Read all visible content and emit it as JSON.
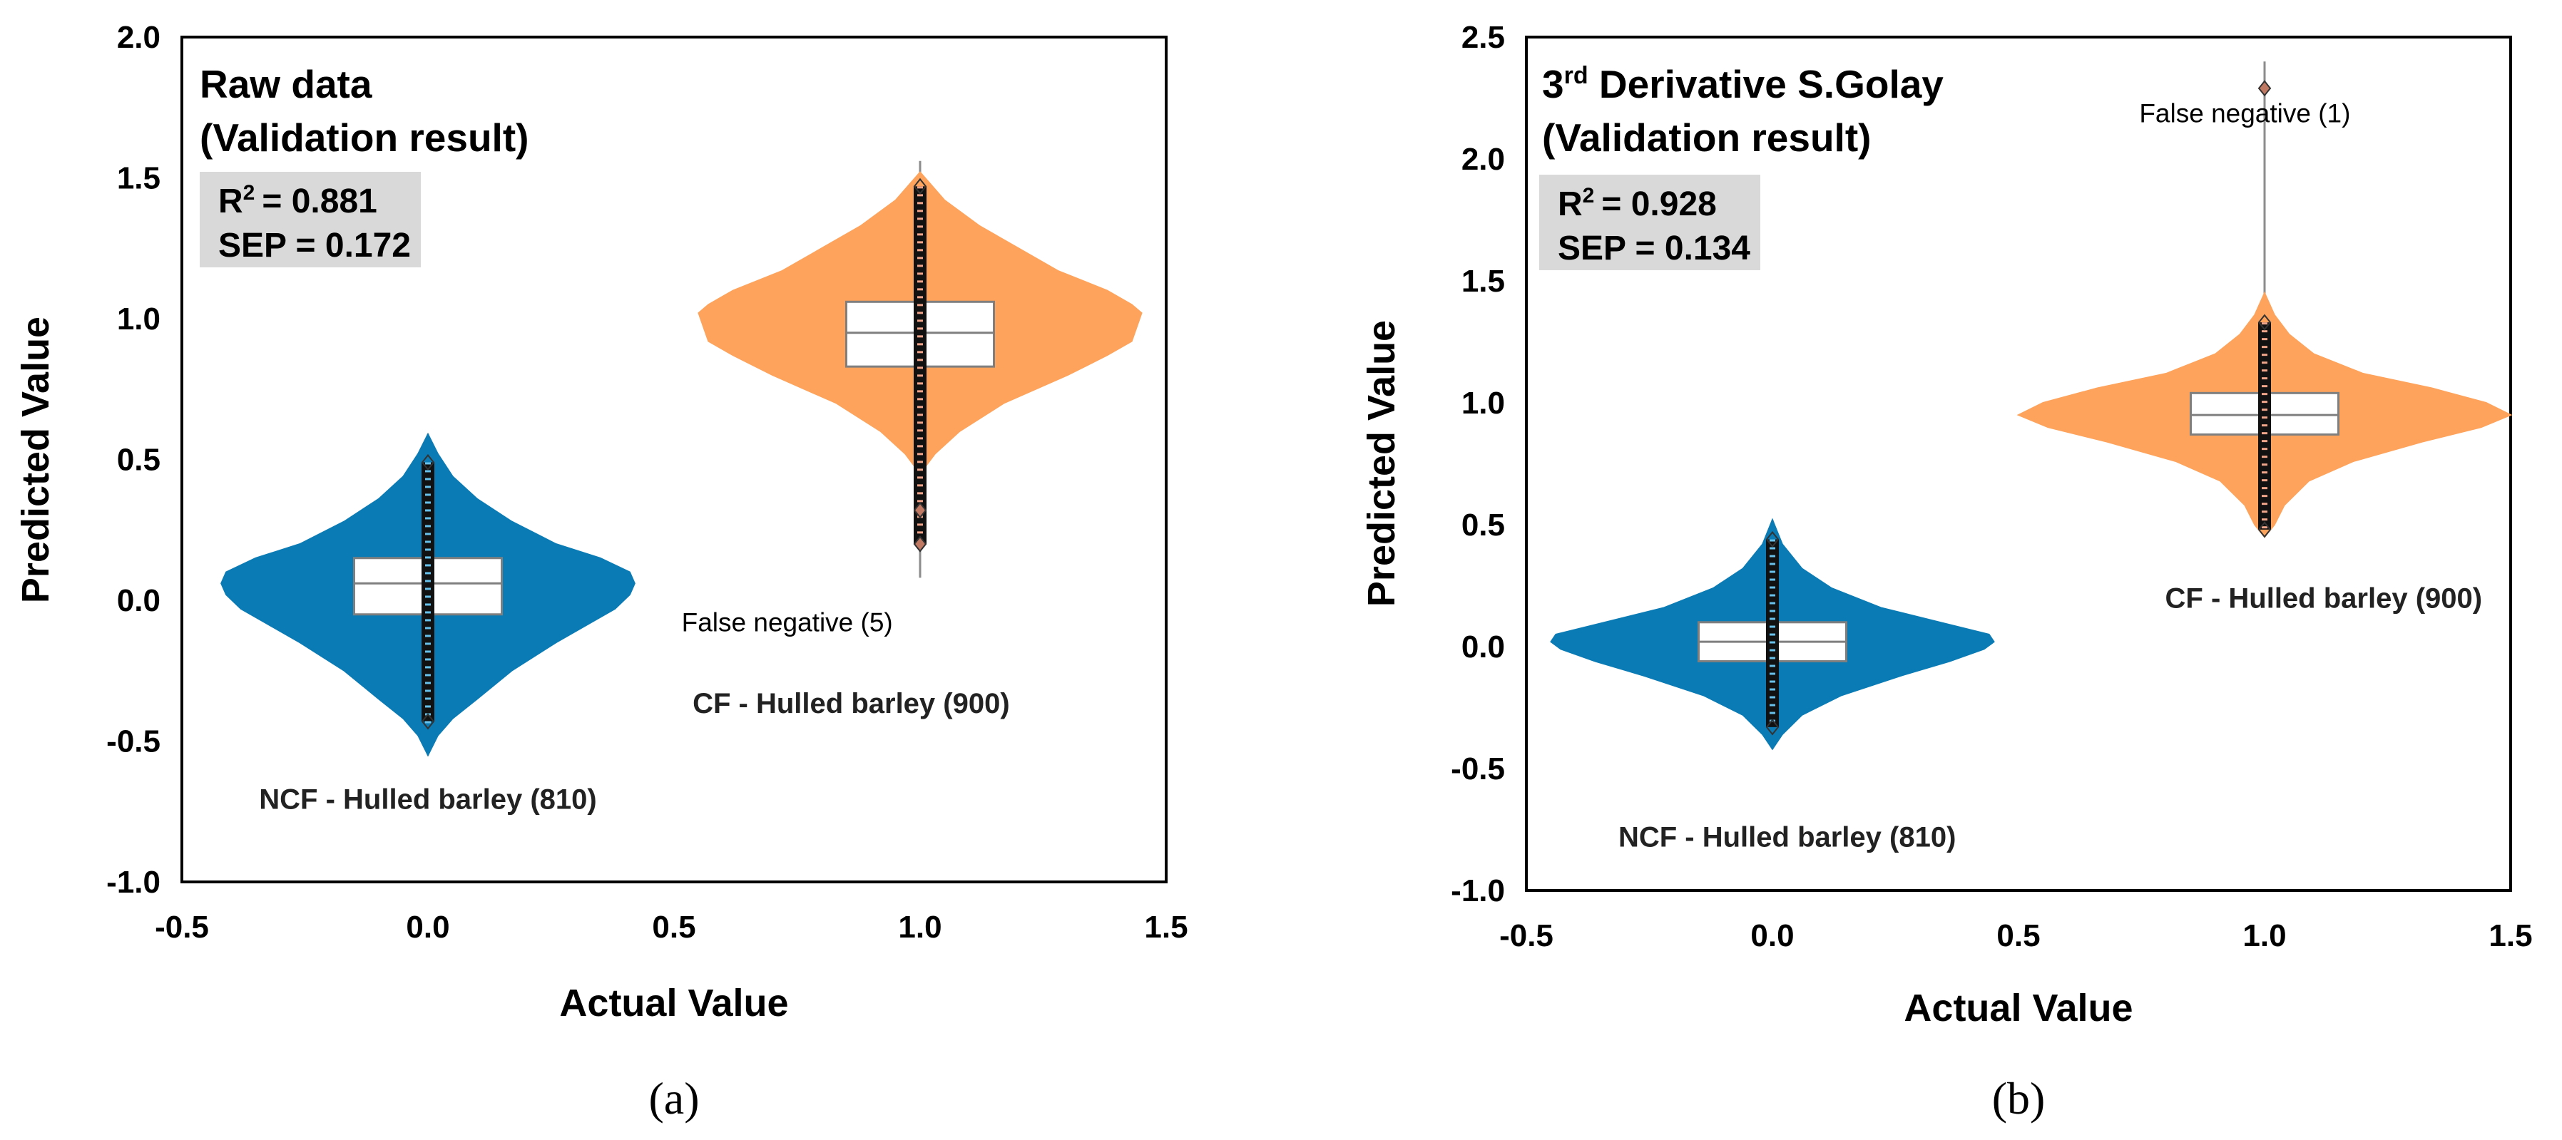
{
  "chart_data": [
    {
      "type": "violin",
      "panel_label": "(a)",
      "title_line1": "Raw data",
      "title_line2": "(Validation result)",
      "stats": {
        "r2_label": "R",
        "r2_sup": "2",
        "r2_value": "= 0.881",
        "sep": "SEP = 0.172"
      },
      "xlabel": "Actual Value",
      "ylabel": "Predicted Value",
      "xlim": [
        -0.5,
        1.5
      ],
      "ylim": [
        -1.0,
        2.0
      ],
      "xticks": [
        "-0.5",
        "0.0",
        "0.5",
        "1.0",
        "1.5"
      ],
      "xtick_values": [
        -0.5,
        0.0,
        0.5,
        1.0,
        1.5
      ],
      "yticks": [
        "-1.0",
        "-0.5",
        "0.0",
        "0.5",
        "1.0",
        "1.5",
        "2.0"
      ],
      "ytick_values": [
        -1.0,
        -0.5,
        0.0,
        0.5,
        1.0,
        1.5,
        2.0
      ],
      "groups": [
        {
          "name": "NCF - Hulled barley (810)",
          "x": 0.0,
          "color": "#0a7bb4",
          "whisker": [
            -0.55,
            0.59
          ],
          "box": {
            "q1": -0.05,
            "median": 0.06,
            "q3": 0.15,
            "half_width": 0.15
          },
          "points_range": [
            -0.43,
            0.49
          ],
          "profile": [
            [
              -0.55,
              0
            ],
            [
              -0.48,
              0.02
            ],
            [
              -0.42,
              0.05
            ],
            [
              -0.35,
              0.1
            ],
            [
              -0.25,
              0.17
            ],
            [
              -0.15,
              0.26
            ],
            [
              -0.08,
              0.33
            ],
            [
              -0.03,
              0.38
            ],
            [
              0.02,
              0.41
            ],
            [
              0.06,
              0.42
            ],
            [
              0.1,
              0.41
            ],
            [
              0.15,
              0.35
            ],
            [
              0.2,
              0.26
            ],
            [
              0.28,
              0.17
            ],
            [
              0.36,
              0.1
            ],
            [
              0.44,
              0.05
            ],
            [
              0.52,
              0.02
            ],
            [
              0.59,
              0
            ]
          ]
        },
        {
          "name": "CF - Hulled barley (900)",
          "x": 1.0,
          "color": "#fda35c",
          "whisker": [
            0.08,
            1.56
          ],
          "box": {
            "q1": 0.83,
            "median": 0.95,
            "q3": 1.06,
            "half_width": 0.15
          },
          "points_range": [
            0.2,
            1.47
          ],
          "profile": [
            [
              0.45,
              0
            ],
            [
              0.52,
              0.03
            ],
            [
              0.6,
              0.08
            ],
            [
              0.7,
              0.17
            ],
            [
              0.8,
              0.3
            ],
            [
              0.87,
              0.38
            ],
            [
              0.92,
              0.43
            ],
            [
              0.97,
              0.44
            ],
            [
              1.02,
              0.45
            ],
            [
              1.05,
              0.43
            ],
            [
              1.1,
              0.38
            ],
            [
              1.17,
              0.28
            ],
            [
              1.25,
              0.2
            ],
            [
              1.33,
              0.12
            ],
            [
              1.42,
              0.05
            ],
            [
              1.48,
              0.02
            ],
            [
              1.52,
              0
            ]
          ]
        }
      ],
      "annotations": [
        {
          "text": "False negative (5)",
          "x": 0.73,
          "y": -0.11
        },
        {
          "text": "CF - Hulled barley (900)",
          "x": 0.86,
          "y": -0.4
        },
        {
          "text": "NCF - Hulled barley (810)",
          "x": 0.0,
          "y": -0.74
        }
      ]
    },
    {
      "type": "violin",
      "panel_label": "(b)",
      "title_line1": "3",
      "title_sup": "rd",
      "title_line1_rest": " Derivative S.Golay",
      "title_line2": "(Validation result)",
      "stats": {
        "r2_label": "R",
        "r2_sup": "2",
        "r2_value": "= 0.928",
        "sep": "SEP = 0.134"
      },
      "xlabel": "Actual Value",
      "ylabel": "Predicted Value",
      "xlim": [
        -0.5,
        1.5
      ],
      "ylim": [
        -1.0,
        2.5
      ],
      "xticks": [
        "-0.5",
        "0.0",
        "0.5",
        "1.0",
        "1.5"
      ],
      "xtick_values": [
        -0.5,
        0.0,
        0.5,
        1.0,
        1.5
      ],
      "yticks": [
        "-1.0",
        "-0.5",
        "0.0",
        "0.5",
        "1.0",
        "1.5",
        "2.0",
        "2.5"
      ],
      "ytick_values": [
        -1.0,
        -0.5,
        0.0,
        0.5,
        1.0,
        1.5,
        2.0,
        2.5
      ],
      "groups": [
        {
          "name": "NCF - Hulled barley (810)",
          "x": 0.0,
          "color": "#0a7bb4",
          "whisker": [
            -0.42,
            0.52
          ],
          "box": {
            "q1": -0.06,
            "median": 0.02,
            "q3": 0.1,
            "half_width": 0.15
          },
          "points_range": [
            -0.33,
            0.44
          ],
          "profile": [
            [
              -0.42,
              0
            ],
            [
              -0.36,
              0.02
            ],
            [
              -0.28,
              0.06
            ],
            [
              -0.2,
              0.14
            ],
            [
              -0.12,
              0.26
            ],
            [
              -0.06,
              0.36
            ],
            [
              -0.01,
              0.43
            ],
            [
              0.02,
              0.45
            ],
            [
              0.05,
              0.44
            ],
            [
              0.1,
              0.34
            ],
            [
              0.16,
              0.22
            ],
            [
              0.24,
              0.12
            ],
            [
              0.32,
              0.06
            ],
            [
              0.42,
              0.02
            ],
            [
              0.52,
              0
            ]
          ]
        },
        {
          "name": "CF - Hulled barley (900)",
          "x": 1.0,
          "color": "#fda35c",
          "whisker": [
            0.45,
            2.4
          ],
          "box": {
            "q1": 0.87,
            "median": 0.95,
            "q3": 1.04,
            "half_width": 0.15
          },
          "points_range": [
            0.48,
            1.33
          ],
          "outlier": 2.29,
          "profile": [
            [
              0.45,
              0
            ],
            [
              0.5,
              0.02
            ],
            [
              0.58,
              0.04
            ],
            [
              0.68,
              0.09
            ],
            [
              0.76,
              0.18
            ],
            [
              0.84,
              0.32
            ],
            [
              0.9,
              0.44
            ],
            [
              0.95,
              0.5
            ],
            [
              1.0,
              0.45
            ],
            [
              1.06,
              0.34
            ],
            [
              1.12,
              0.2
            ],
            [
              1.2,
              0.1
            ],
            [
              1.28,
              0.05
            ],
            [
              1.36,
              0.02
            ],
            [
              1.45,
              0
            ]
          ]
        }
      ],
      "annotations": [
        {
          "text": "False negative (1)",
          "x": 0.96,
          "y": 2.15
        },
        {
          "text": "CF - Hulled barley (900)",
          "x": 1.12,
          "y": 0.16
        },
        {
          "text": "NCF - Hulled barley (810)",
          "x": 0.03,
          "y": -0.82
        }
      ]
    }
  ]
}
